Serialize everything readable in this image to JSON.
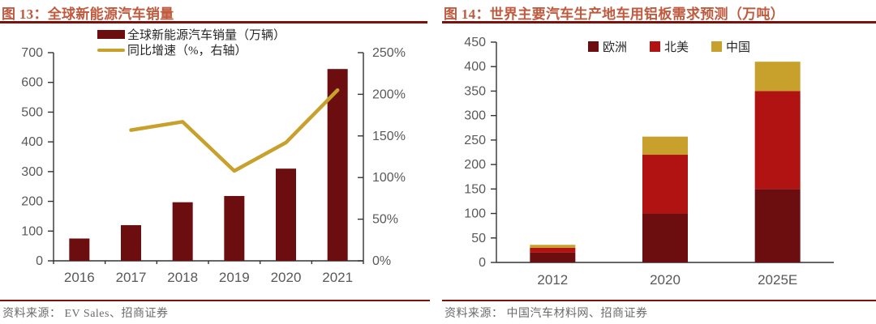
{
  "styles": {
    "title_color": "#C05A3F",
    "rule_color": "#7C120B",
    "axis_text_color": "#595959",
    "axis_line_color": "#333333",
    "source_color": "#6B6B6B"
  },
  "chart_data": [
    {
      "id": "chart13",
      "type": "bar",
      "title": "图 13：全球新能源汽车销量",
      "categories": [
        "2016",
        "2017",
        "2018",
        "2019",
        "2020",
        "2021"
      ],
      "bar_series": {
        "name": "全球新能源汽车销量（万辆）",
        "color": "#6C0E10",
        "values": [
          75,
          120,
          197,
          218,
          310,
          645
        ]
      },
      "line_series": {
        "name": "同比增速（%，右轴）",
        "color": "#C8A12D",
        "values": [
          null,
          157,
          167,
          108,
          142,
          205
        ]
      },
      "left_axis": {
        "min": 0,
        "max": 700,
        "step": 100,
        "suffix": ""
      },
      "right_axis": {
        "min": 0,
        "max": 250,
        "step": 50,
        "suffix": "%"
      },
      "grid": false,
      "legend_position": "top-center",
      "source": "资料来源： EV Sales、招商证券"
    },
    {
      "id": "chart14",
      "type": "bar",
      "subtype": "stacked",
      "title": "图 14：世界主要汽车生产地车用铝板需求预测（万吨）",
      "categories": [
        "2012",
        "2020",
        "2025E"
      ],
      "series": [
        {
          "name": "欧洲",
          "color": "#6C0E10",
          "values": [
            20,
            100,
            150
          ]
        },
        {
          "name": "北美",
          "color": "#B01311",
          "values": [
            10,
            120,
            200
          ]
        },
        {
          "name": "中国",
          "color": "#C8A12D",
          "values": [
            6,
            37,
            60
          ]
        }
      ],
      "axis": {
        "min": 0,
        "max": 450,
        "step": 50,
        "suffix": ""
      },
      "grid": false,
      "legend_position": "top-center",
      "source": "资料来源： 中国汽车材料网、招商证券"
    }
  ]
}
